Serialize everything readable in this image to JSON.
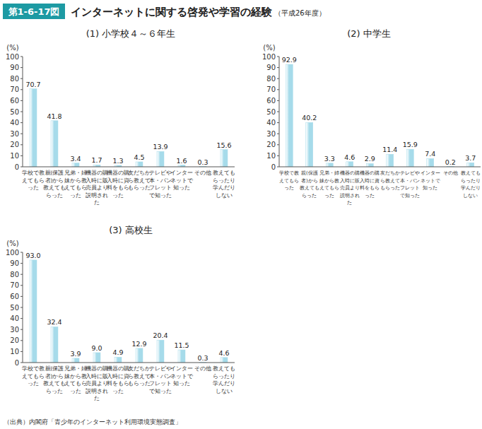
{
  "header": {
    "label": "第1-6-17図",
    "title": "インターネットに関する啓発や学習の経験",
    "subtitle": "（平成26年度）"
  },
  "chart_data": [
    {
      "type": "bar",
      "title": "(1) 小学校４～６年生",
      "y_label": "(%)",
      "categories": [
        "学校で教えてもらった",
        "親(保護者)から教えてもらった",
        "兄弟・姉妹から教えてもらった",
        "機器の購入時に販売員より説明された",
        "機器の購入時に資料をもらった",
        "友だちから教えてもらった",
        "テレビや本・パンフレットで知った",
        "インターネットで知った",
        "その他",
        "教えてもらったり学んだりしない"
      ],
      "values": [
        70.7,
        41.8,
        3.4,
        1.7,
        1.3,
        4.5,
        13.9,
        1.6,
        0.3,
        15.6
      ],
      "color": "#a6dbea",
      "ylim": [
        0,
        100
      ],
      "yticks": [
        0,
        10,
        20,
        30,
        40,
        50,
        60,
        70,
        80,
        90,
        100
      ],
      "grid": false,
      "data_labels": true
    },
    {
      "type": "bar",
      "title": "(2) 中学生",
      "y_label": "(%)",
      "categories": [
        "学校で教えてもらった",
        "親(保護者)から教えてもらった",
        "兄弟・姉妹から教えてもらった",
        "機器の購入時に販売員より説明された",
        "機器の購入時に資料をもらった",
        "友だちから教えてもらった",
        "テレビや本・パンフレットで知った",
        "インターネットで知った",
        "その他",
        "教えてもらったり学んだりしない"
      ],
      "values": [
        92.9,
        40.2,
        3.3,
        4.6,
        2.9,
        11.4,
        15.9,
        7.4,
        0.2,
        3.7
      ],
      "color": "#a6dbea",
      "ylim": [
        0,
        100
      ],
      "yticks": [
        0,
        10,
        20,
        30,
        40,
        50,
        60,
        70,
        80,
        90,
        100
      ],
      "grid": false,
      "data_labels": true
    },
    {
      "type": "bar",
      "title": "(3) 高校生",
      "y_label": "(%)",
      "categories": [
        "学校で教えてもらった",
        "親(保護者)から教えてもらった",
        "兄弟・姉妹から教えてもらった",
        "機器の購入時に販売員より説明された",
        "機器の購入時に資料をもらった",
        "友だちから教えてもらった",
        "テレビや本・パンフレットで知った",
        "インターネットで知った",
        "その他",
        "教えてもらったり学んだりしない"
      ],
      "values": [
        93.0,
        32.4,
        3.9,
        9.0,
        4.9,
        12.9,
        20.4,
        11.5,
        0.3,
        4.6
      ],
      "value_labels": [
        "93.0",
        "32.4",
        "3.9",
        "9.0",
        "4.9",
        "12.9",
        "20.4",
        "11.5",
        "0.3",
        "4.6"
      ],
      "color": "#a6dbea",
      "ylim": [
        0,
        100
      ],
      "yticks": [
        0,
        10,
        20,
        30,
        40,
        50,
        60,
        70,
        80,
        90,
        100
      ],
      "grid": false,
      "data_labels": true
    }
  ],
  "source": "（出典）内閣府「青少年のインターネット利用環境実態調査」"
}
